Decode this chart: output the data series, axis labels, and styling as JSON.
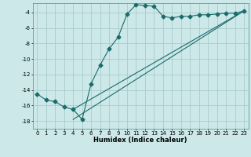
{
  "xlabel": "Humidex (Indice chaleur)",
  "bg_color": "#cce8e8",
  "grid_color": "#aacccc",
  "line_color": "#1a6b6b",
  "xlim": [
    -0.5,
    23.5
  ],
  "ylim": [
    -19.0,
    -2.8
  ],
  "xticks": [
    0,
    1,
    2,
    3,
    4,
    5,
    6,
    7,
    8,
    9,
    10,
    11,
    12,
    13,
    14,
    15,
    16,
    17,
    18,
    19,
    20,
    21,
    22,
    23
  ],
  "yticks": [
    -18,
    -16,
    -14,
    -12,
    -10,
    -8,
    -6,
    -4
  ],
  "curve_x": [
    0,
    1,
    2,
    3,
    4,
    5,
    6,
    7,
    8,
    9,
    10,
    11,
    12,
    13,
    14,
    15,
    16,
    17,
    18,
    19,
    20,
    21,
    22,
    23
  ],
  "curve_y": [
    -14.5,
    -15.3,
    -15.5,
    -16.2,
    -16.5,
    -17.8,
    -13.2,
    -10.8,
    -8.7,
    -7.2,
    -4.2,
    -3.0,
    -3.1,
    -3.2,
    -4.5,
    -4.7,
    -4.5,
    -4.5,
    -4.3,
    -4.3,
    -4.2,
    -4.1,
    -4.1,
    -3.8
  ],
  "line1_x": [
    4,
    23
  ],
  "line1_y": [
    -16.5,
    -3.8
  ],
  "line2_x": [
    4,
    23
  ],
  "line2_y": [
    -17.8,
    -3.8
  ],
  "xlabel_fontsize": 6.0,
  "tick_fontsize": 5.0,
  "marker": "D",
  "markersize": 2.5
}
